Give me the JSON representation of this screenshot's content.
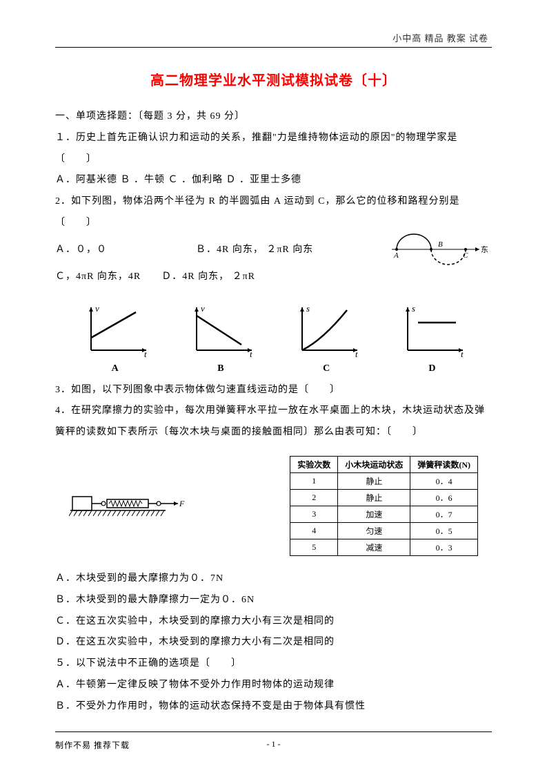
{
  "header": {
    "right_text": "小中高 精品 教案 试卷"
  },
  "title": "高二物理学业水平测试模拟试卷〔十〕",
  "section_header": "一、单项选择题：〔每题 3 分，共 69 分〕",
  "q1": {
    "stem": "１．历史上首先正确认识力和运动的关系，推翻\"力是维持物体运动的原因\"的物理学家是〔　　〕",
    "options": "Ａ．阿基米德 Ｂ ．牛顿 Ｃ ．伽利略 Ｄ ．亚里士多德"
  },
  "q2": {
    "stem": "2．如下列图，物体沿两个半径为 R 的半圆弧由 A 运动到 C，那么它的位移和路程分别是〔　　〕",
    "opt_row1_a": "Ａ．０，０",
    "opt_row1_b": "Ｂ．4R 向东， ２πR 向东",
    "opt_row2": "Ｃ，4πR 向东，4R　　Ｄ．4R 向东， ２πR",
    "diagram": {
      "labels": {
        "A": "A",
        "B": "B",
        "C": "C",
        "east": "东"
      },
      "stroke": "#000000",
      "stroke_width": 1.5
    }
  },
  "graphs": {
    "A": {
      "ylabel": "v",
      "xlabel": "t",
      "label": "A",
      "stroke": "#000000"
    },
    "B": {
      "ylabel": "v",
      "xlabel": "t",
      "label": "B",
      "stroke": "#000000"
    },
    "C": {
      "ylabel": "s",
      "xlabel": "t",
      "label": "C",
      "stroke": "#000000"
    },
    "D": {
      "ylabel": "s",
      "xlabel": "t",
      "label": "D",
      "stroke": "#000000"
    }
  },
  "q3": {
    "stem": "3．如图，以下列图象中表示物体做匀速直线运动的是〔　　〕"
  },
  "q4": {
    "stem": "4．在研究摩擦力的实验中，每次用弹簧秤水平拉一放在水平桌面上的木块，木块运动状态及弹簧秤的读数如下表所示〔每次木块与桌面的接触面相同〕那么由表可知：〔　　〕",
    "table": {
      "headers": [
        "实验次数",
        "小木块运动状态",
        "弹簧秤读数(N)"
      ],
      "rows": [
        [
          "1",
          "静止",
          "0．4"
        ],
        [
          "2",
          "静止",
          "0．6"
        ],
        [
          "3",
          "加速",
          "0．7"
        ],
        [
          "4",
          "匀速",
          "0．5"
        ],
        [
          "5",
          "减速",
          "0．3"
        ]
      ],
      "border_color": "#000000"
    },
    "spring_diagram": {
      "stroke": "#000000",
      "label_F": "F"
    },
    "opt_a": "Ａ．木块受到的最大摩擦力为０．7N",
    "opt_b": "Ｂ．木块受到的最大静摩擦力一定为０．6N",
    "opt_c": "Ｃ．在这五次实验中，木块受到的摩擦力大小有三次是相同的",
    "opt_d": "Ｄ．在这五次实验中，木块受到的摩擦力大小有二次是相同的"
  },
  "q5": {
    "stem": "５．以下说法中不正确的选项是〔　　〕",
    "opt_a": "Ａ．牛顿第一定律反映了物体不受外力作用时物体的运动规律",
    "opt_b": "Ｂ．不受外力作用时，物体的运动状态保持不变是由于物体具有惯性"
  },
  "footer": {
    "left": "制作不易 推荐下载",
    "page": "- 1 -"
  },
  "colors": {
    "title": "#ff0000",
    "text": "#000000",
    "background": "#ffffff",
    "rule": "#000000"
  }
}
